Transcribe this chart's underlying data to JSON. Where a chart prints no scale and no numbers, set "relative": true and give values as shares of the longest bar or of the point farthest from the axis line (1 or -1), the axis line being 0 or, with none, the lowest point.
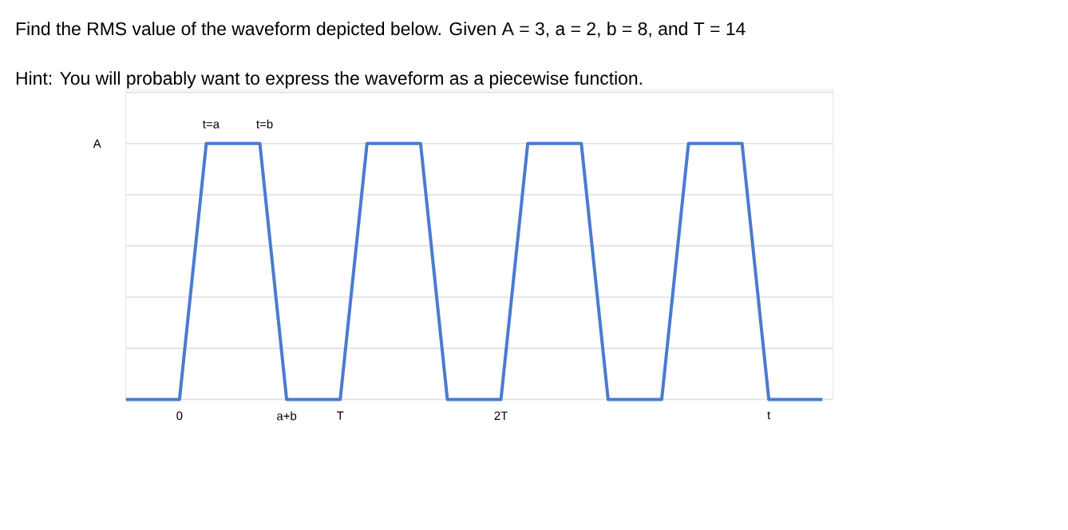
{
  "chart_data": {
    "type": "line",
    "title": "Find the RMS value of the waveform depicted below. Given A = 3, a = 2, b = 8, and T = 14",
    "subtitle": "Hint: You will probably want to express the waveform as a piecewise function.",
    "relative": true,
    "grid": "y",
    "categories": [
      null,
      null,
      "0",
      null,
      null,
      null,
      "a+b",
      null,
      "T",
      null,
      null,
      null,
      null,
      null,
      "2T",
      null,
      null,
      null,
      null,
      null,
      null,
      null,
      null,
      null,
      "t",
      null,
      null
    ],
    "series": [
      {
        "color": "#4a7bd0",
        "values": [
          0,
          0,
          0,
          1,
          1,
          1,
          0,
          0,
          0,
          1,
          1,
          1,
          0,
          0,
          0,
          1,
          1,
          1,
          0,
          0,
          0,
          1,
          1,
          1,
          0,
          0,
          0
        ]
      }
    ],
    "annotations": [
      "t=a",
      "t=b",
      "A"
    ]
  }
}
